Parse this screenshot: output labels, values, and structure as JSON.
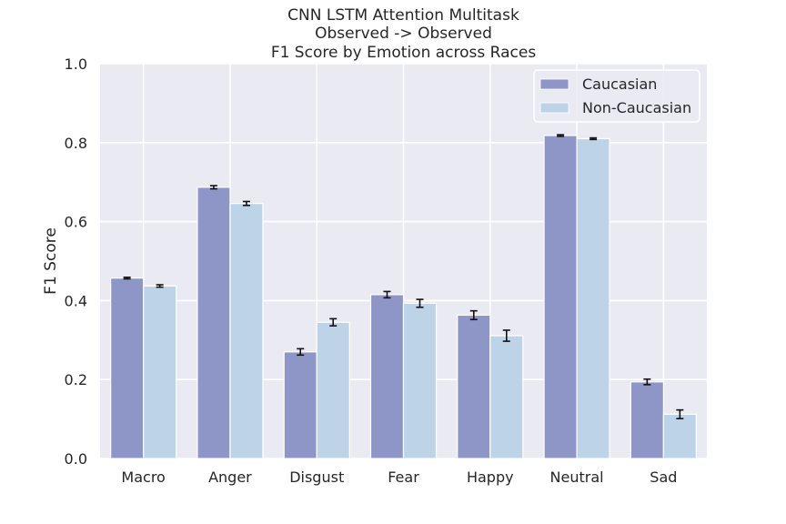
{
  "chart_data": {
    "type": "bar",
    "title_lines": [
      "CNN LSTM Attention Multitask",
      "Observed -> Observed",
      "F1 Score by Emotion across Races"
    ],
    "xlabel": "",
    "ylabel": "F1 Score",
    "ylim": [
      0,
      1.0
    ],
    "yticks": [
      "0.0",
      "0.2",
      "0.4",
      "0.6",
      "0.8",
      "1.0"
    ],
    "categories": [
      "Macro",
      "Anger",
      "Disgust",
      "Fear",
      "Happy",
      "Neutral",
      "Sad"
    ],
    "series": [
      {
        "name": "Caucasian",
        "color": "#8e96c7",
        "values": [
          0.457,
          0.687,
          0.27,
          0.415,
          0.363,
          0.818,
          0.194
        ],
        "errors": [
          0.002,
          0.004,
          0.008,
          0.008,
          0.011,
          0.002,
          0.007
        ]
      },
      {
        "name": "Non-Caucasian",
        "color": "#bdd3e8",
        "values": [
          0.437,
          0.646,
          0.345,
          0.393,
          0.311,
          0.81,
          0.112
        ],
        "errors": [
          0.003,
          0.005,
          0.009,
          0.01,
          0.014,
          0.002,
          0.011
        ]
      }
    ],
    "grid": true,
    "legend": "top-right",
    "background": "#eaeaf2"
  }
}
